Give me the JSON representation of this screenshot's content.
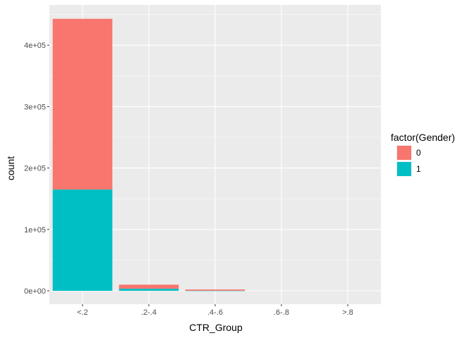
{
  "chart_data": {
    "type": "bar",
    "stacked": true,
    "categories": [
      "<.2",
      ".2-.4",
      ".4-.6",
      ".6-.8",
      ">.8"
    ],
    "series": [
      {
        "name": "0",
        "color": "#F8766D",
        "values": [
          278000,
          6500,
          2000,
          0,
          0
        ]
      },
      {
        "name": "1",
        "color": "#00BFC4",
        "values": [
          165000,
          3500,
          200,
          0,
          0
        ]
      }
    ],
    "xlabel": "CTR_Group",
    "ylabel": "count",
    "yticks": [
      0,
      100000,
      200000,
      300000,
      400000
    ],
    "ytick_labels": [
      "0e+00",
      "1e+05",
      "2e+05",
      "3e+05",
      "4e+05"
    ],
    "ylim": [
      0,
      465000
    ],
    "grid": true,
    "legend": {
      "title": "factor(Gender)",
      "position": "right"
    },
    "colors": {
      "panel_background": "#EBEBEB",
      "gridline": "#FFFFFF"
    }
  }
}
